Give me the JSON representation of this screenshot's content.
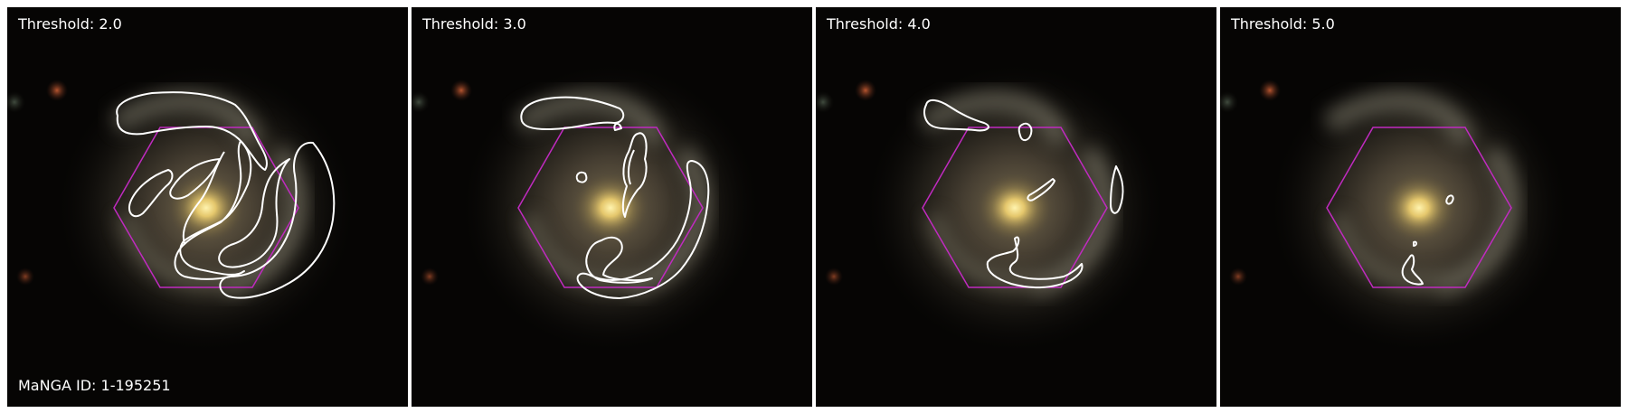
{
  "figure": {
    "manga_id_label": "MaNGA ID: 1-195251",
    "panels": [
      {
        "label": "Threshold: 2.0"
      },
      {
        "label": "Threshold: 3.0"
      },
      {
        "label": "Threshold: 4.0"
      },
      {
        "label": "Threshold: 5.0"
      }
    ]
  },
  "colors": {
    "hexagon": "#c02ac0",
    "contour": "#ffffff",
    "core": "#ffe27a"
  }
}
